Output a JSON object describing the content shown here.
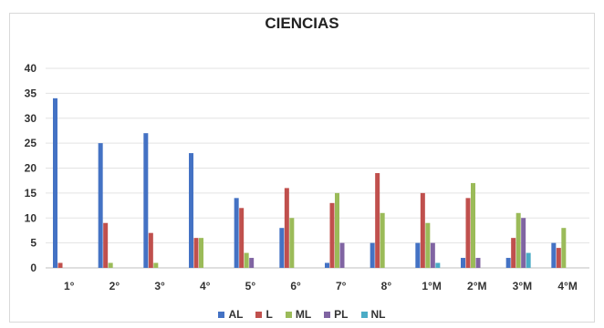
{
  "chart_data": {
    "type": "bar",
    "title": "CIENCIAS",
    "xlabel": "",
    "ylabel": "",
    "ylim": [
      0,
      40
    ],
    "yticks": [
      0,
      5,
      10,
      15,
      20,
      25,
      30,
      35,
      40
    ],
    "grid": true,
    "legend_position": "bottom",
    "categories": [
      "1°",
      "2°",
      "3°",
      "4°",
      "5°",
      "6°",
      "7°",
      "8°",
      "1°M",
      "2°M",
      "3°M",
      "4°M"
    ],
    "series": [
      {
        "name": "AL",
        "color": "#4472c4",
        "values": [
          34,
          25,
          27,
          23,
          14,
          8,
          1,
          5,
          5,
          2,
          2,
          5
        ]
      },
      {
        "name": "L",
        "color": "#c0504d",
        "values": [
          1,
          9,
          7,
          6,
          12,
          16,
          13,
          19,
          15,
          14,
          6,
          4
        ]
      },
      {
        "name": "ML",
        "color": "#9bbb59",
        "values": [
          0,
          1,
          1,
          6,
          3,
          10,
          15,
          11,
          9,
          17,
          11,
          8
        ]
      },
      {
        "name": "PL",
        "color": "#8064a2",
        "values": [
          0,
          0,
          0,
          0,
          2,
          0,
          5,
          0,
          5,
          2,
          10,
          0
        ]
      },
      {
        "name": "NL",
        "color": "#4bacc6",
        "values": [
          0,
          0,
          0,
          0,
          0,
          0,
          0,
          0,
          1,
          0,
          3,
          0
        ]
      }
    ]
  }
}
